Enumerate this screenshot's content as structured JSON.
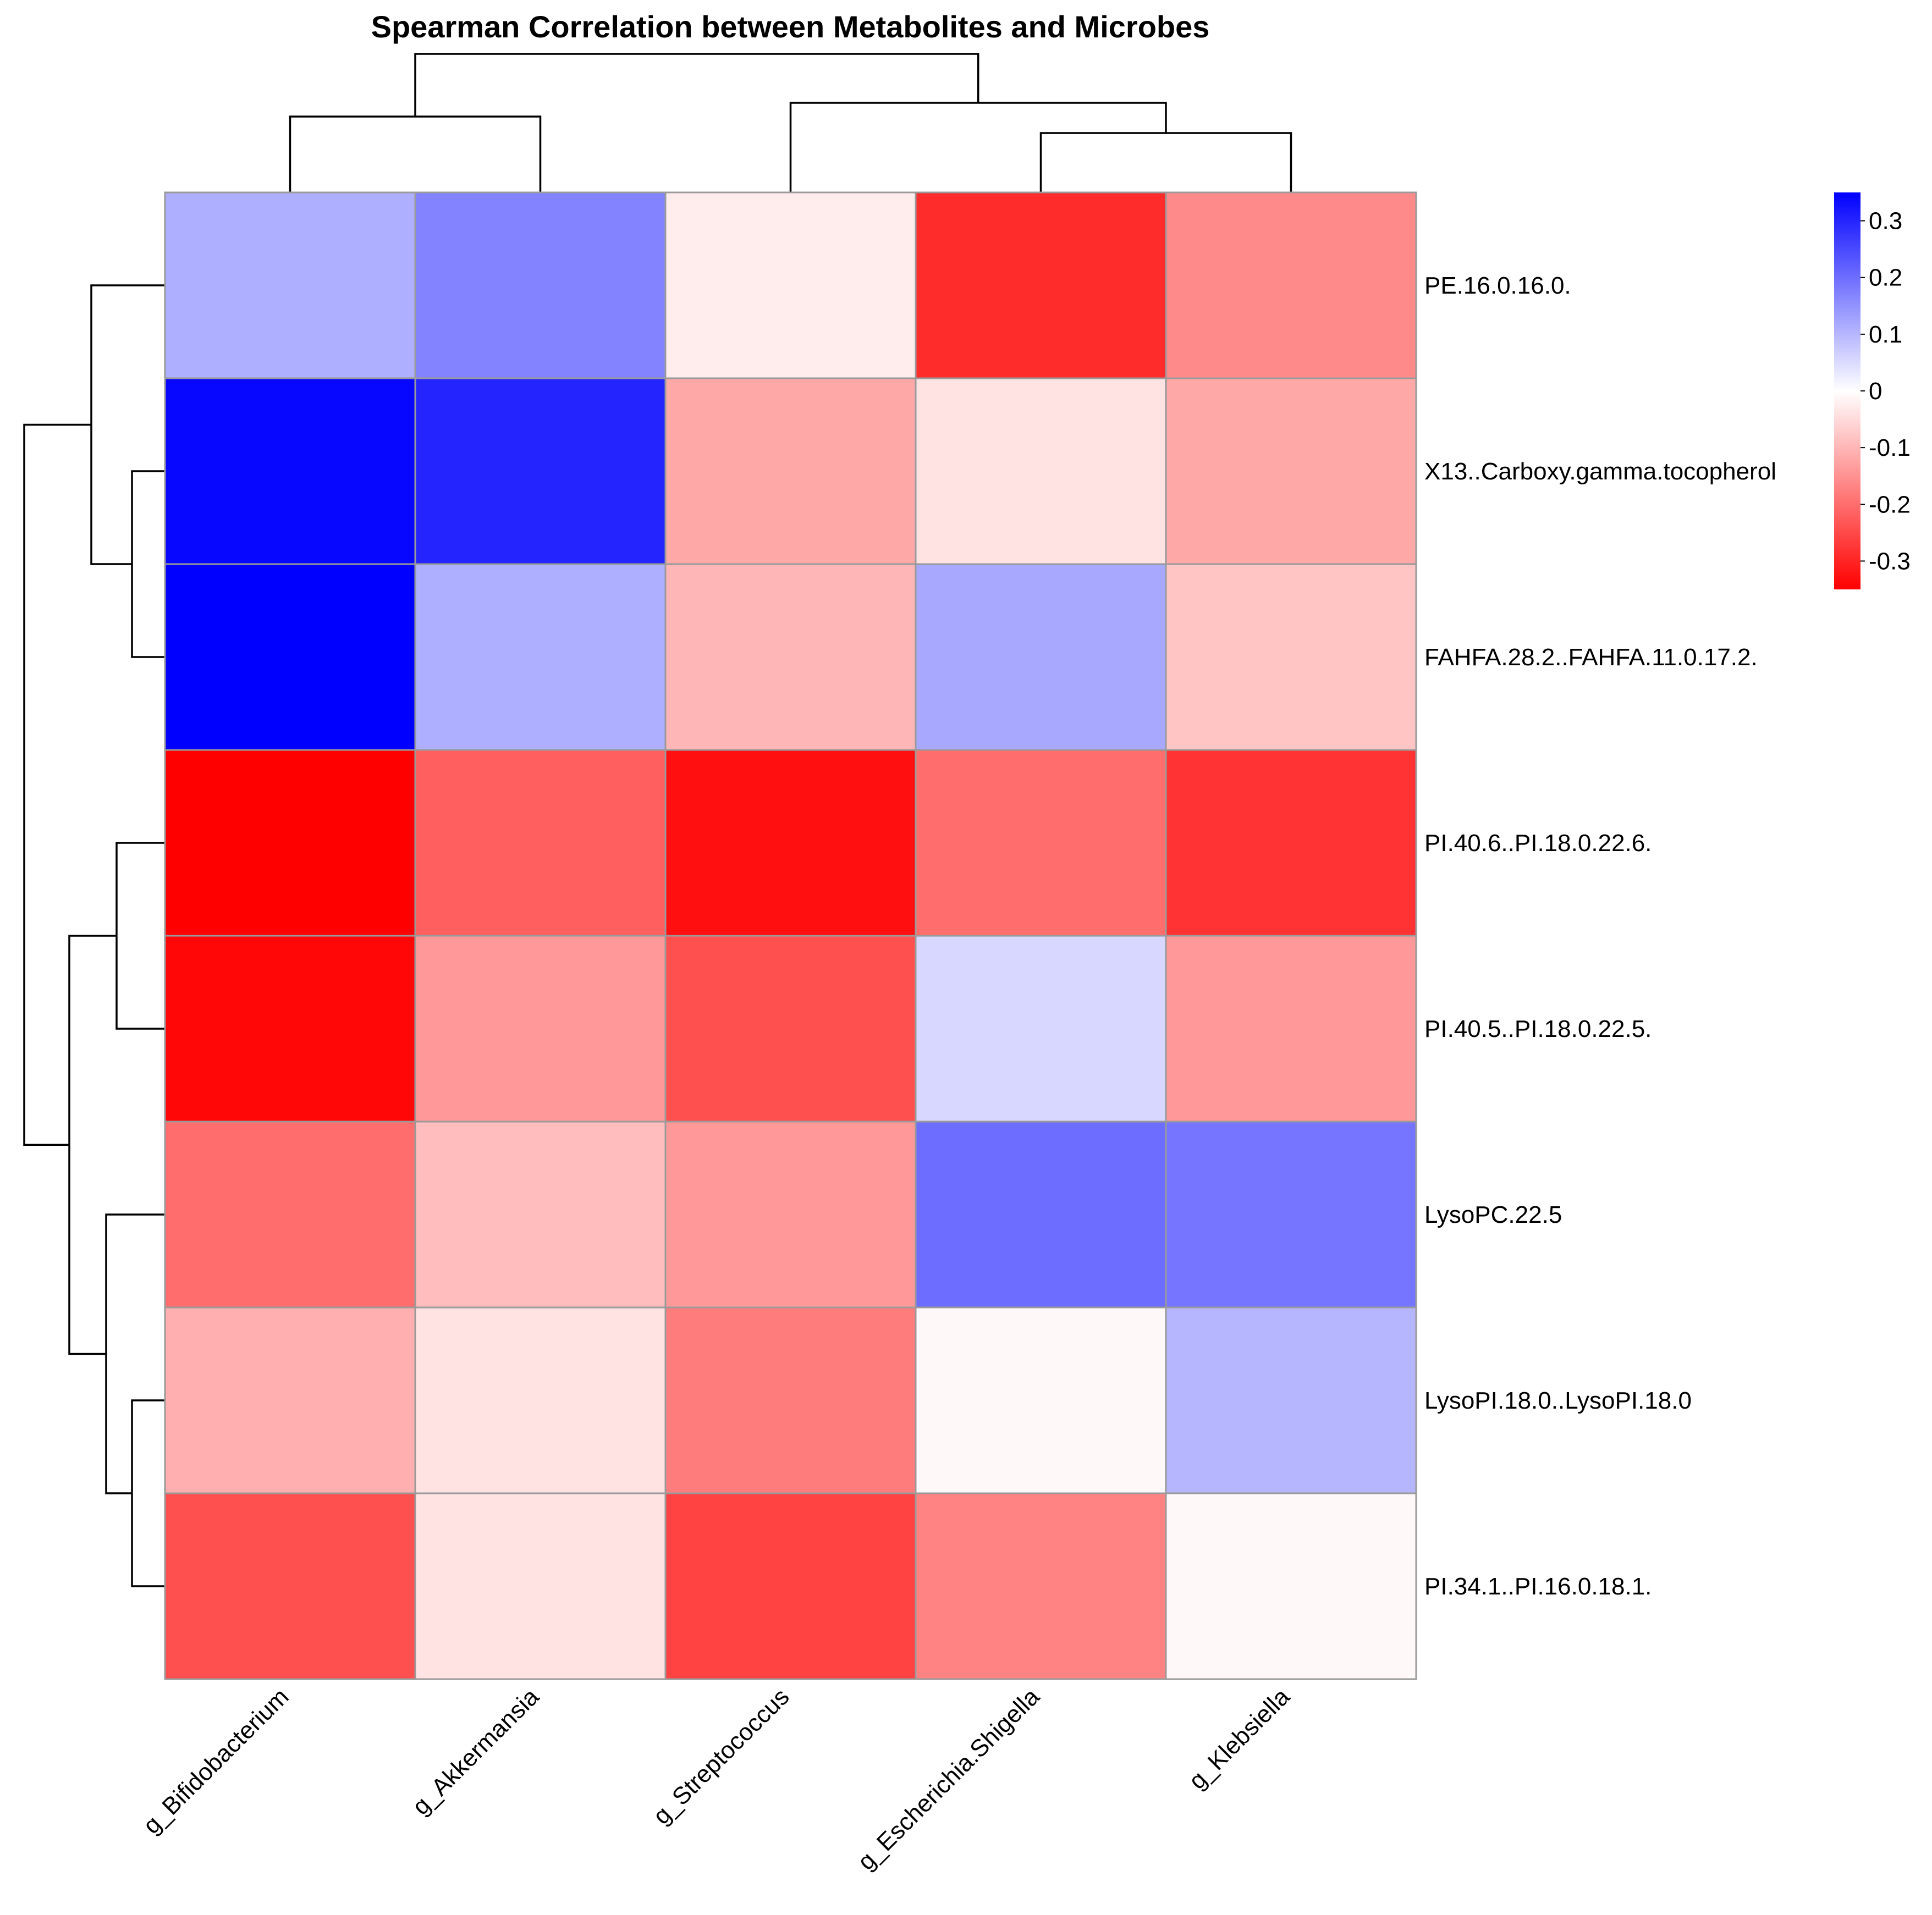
{
  "chart_data": {
    "type": "heatmap",
    "title": "Spearman Correlation between Metabolites and Microbes",
    "columns": [
      "g_Bifidobacterium",
      "g_Akkermansia",
      "g_Streptococcus",
      "g_Escherichia.Shigella",
      "g_Klebsiella"
    ],
    "rows": [
      "PE.16.0.16.0.",
      "X13..Carboxy.gamma.tocopherol",
      "FAHFA.28.2..FAHFA.11.0.17.2.",
      "PI.40.6..PI.18.0.22.6.",
      "PI.40.5..PI.18.0.22.5.",
      "LysoPC.22.5",
      "LysoPI.18.0..LysoPI.18.0",
      "PI.34.1..PI.16.0.18.1."
    ],
    "values": [
      [
        0.11,
        0.17,
        -0.025,
        -0.29,
        -0.16
      ],
      [
        0.34,
        0.3,
        -0.12,
        -0.04,
        -0.12
      ],
      [
        0.35,
        0.11,
        -0.1,
        0.12,
        -0.08
      ],
      [
        -0.35,
        -0.22,
        -0.33,
        -0.2,
        -0.28
      ],
      [
        -0.34,
        -0.14,
        -0.24,
        0.055,
        -0.14
      ],
      [
        -0.2,
        -0.09,
        -0.14,
        0.2,
        0.19
      ],
      [
        -0.11,
        -0.04,
        -0.18,
        -0.01,
        0.1
      ],
      [
        -0.24,
        -0.04,
        -0.26,
        -0.17,
        -0.01
      ]
    ],
    "legend": {
      "ticks": [
        0.3,
        0.2,
        0.1,
        0,
        -0.1,
        -0.2,
        -0.3
      ],
      "labels": [
        "0.3",
        "0.2",
        "0.1",
        "0",
        "-0.1",
        "-0.2",
        "-0.3"
      ],
      "min": -0.35,
      "max": 0.35
    },
    "colors": {
      "low": "#ff0000",
      "mid": "#ffffff",
      "high": "#0000ff",
      "border": "#9a9a9a"
    },
    "column_dendrogram_order": [
      [
        "g_Bifidobacterium",
        "g_Akkermansia"
      ],
      [
        "g_Streptococcus",
        [
          "g_Escherichia.Shigella",
          "g_Klebsiella"
        ]
      ]
    ],
    "row_dendrogram_order": [
      [
        "PE.16.0.16.0.",
        [
          "X13..Carboxy.gamma.tocopherol",
          "FAHFA.28.2..FAHFA.11.0.17.2."
        ]
      ],
      [
        [
          "PI.40.6..PI.18.0.22.6.",
          "PI.40.5..PI.18.0.22.5."
        ],
        [
          "LysoPC.22.5",
          [
            "LysoPI.18.0..LysoPI.18.0",
            "PI.34.1..PI.16.0.18.1."
          ]
        ]
      ]
    ]
  }
}
